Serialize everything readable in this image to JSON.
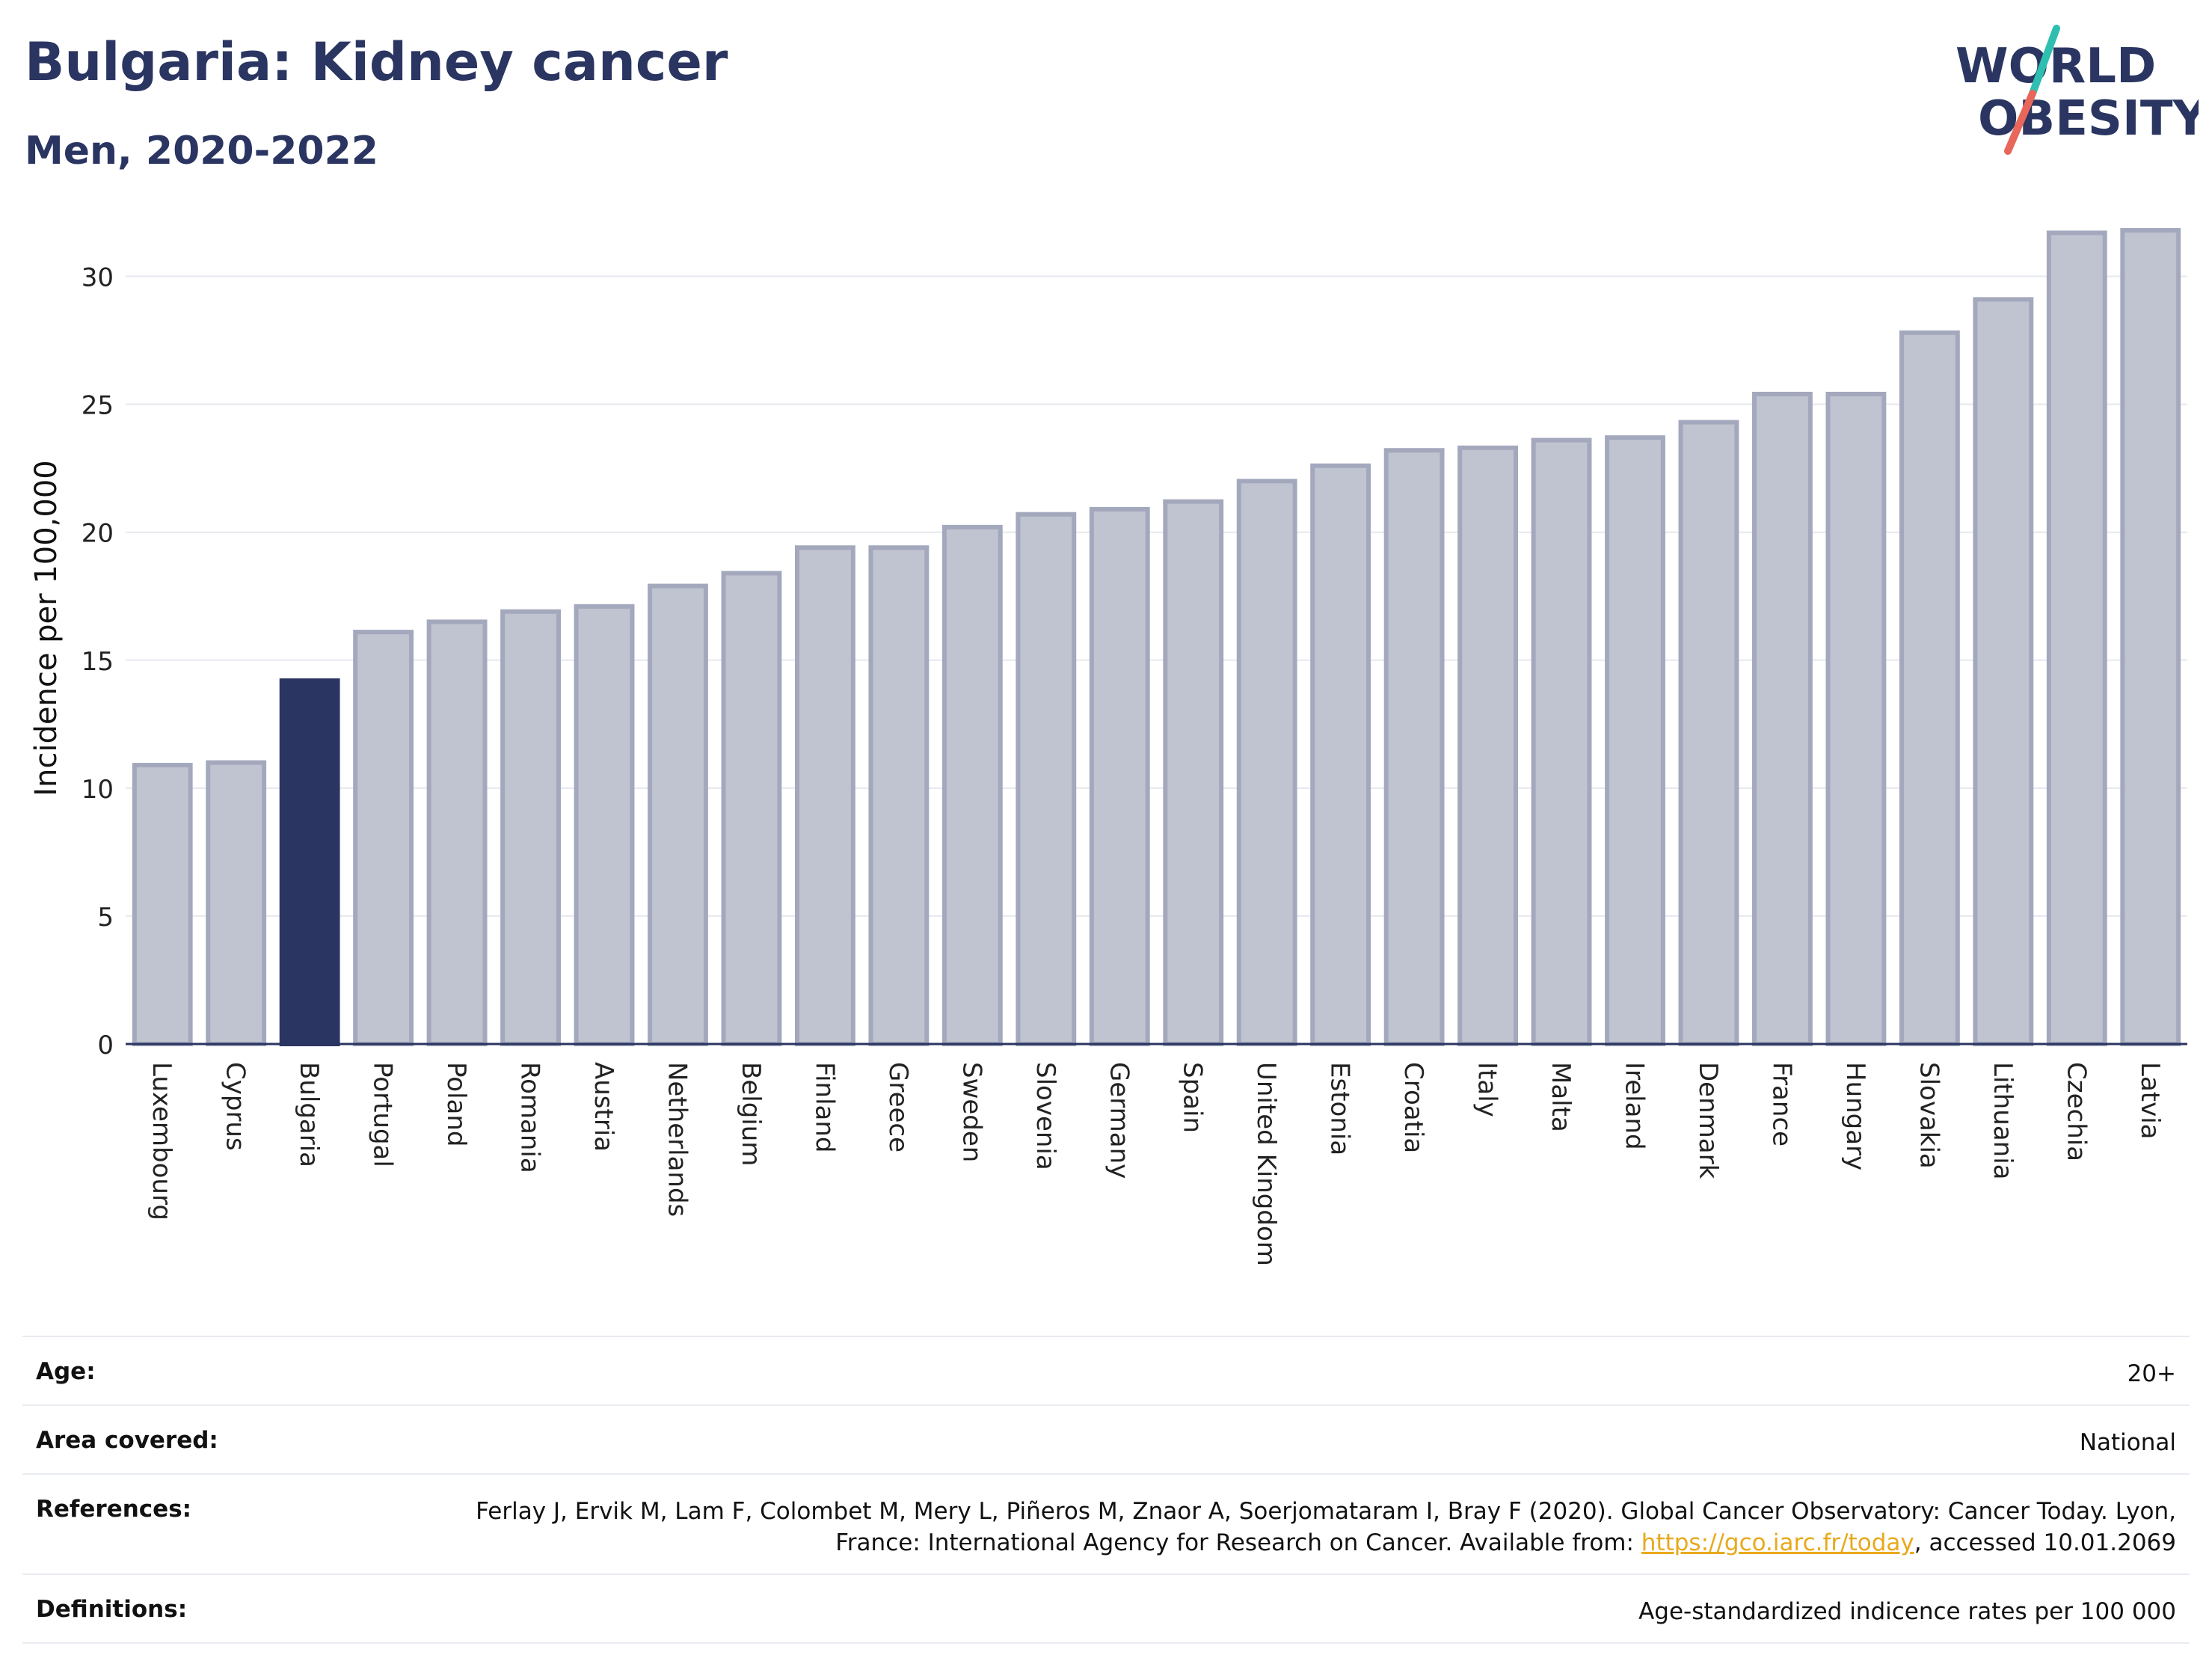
{
  "header": {
    "title": "Bulgaria: Kidney cancer",
    "subtitle": "Men, 2020-2022"
  },
  "logo": {
    "line1": "WORLD",
    "line2": "OBESITY",
    "accent_teal": "#2fbfb0",
    "accent_red": "#e8675a"
  },
  "chart_data": {
    "type": "bar",
    "ylabel": "Incidence per 100,000",
    "ylim": [
      0,
      32.5
    ],
    "yticks": [
      0,
      5,
      10,
      15,
      20,
      25,
      30
    ],
    "grid": true,
    "highlight": "Bulgaria",
    "colors": {
      "bar": "#c0c3d0",
      "bar_border": "#a3a8bd",
      "highlight": "#2a3561"
    },
    "categories": [
      "Luxembourg",
      "Cyprus",
      "Bulgaria",
      "Portugal",
      "Poland",
      "Romania",
      "Austria",
      "Netherlands",
      "Belgium",
      "Finland",
      "Greece",
      "Sweden",
      "Slovenia",
      "Germany",
      "Spain",
      "United Kingdom",
      "Estonia",
      "Croatia",
      "Italy",
      "Malta",
      "Ireland",
      "Denmark",
      "France",
      "Hungary",
      "Slovakia",
      "Lithuania",
      "Czechia",
      "Latvia"
    ],
    "values": [
      10.9,
      11.0,
      14.2,
      16.1,
      16.5,
      16.9,
      17.1,
      17.9,
      18.4,
      19.4,
      19.4,
      20.2,
      20.7,
      20.9,
      21.2,
      22.0,
      22.6,
      23.2,
      23.3,
      23.6,
      23.7,
      24.3,
      25.4,
      25.4,
      27.8,
      29.1,
      31.7,
      31.8
    ]
  },
  "meta": {
    "age_label": "Age:",
    "age_value": "20+",
    "area_label": "Area covered:",
    "area_value": "National",
    "references_label": "References:",
    "references_text_1": "Ferlay J, Ervik M, Lam F, Colombet M, Mery L, Piñeros M, Znaor A, Soerjomataram I, Bray F (2020). Global Cancer Observatory: Cancer Today. Lyon, France: International Agency for Research on Cancer. Available from: ",
    "references_link": "https://gco.iarc.fr/today",
    "references_text_2": ", accessed 10.01.2069",
    "definitions_label": "Definitions:",
    "definitions_value": "Age-standardized indicence rates per 100 000"
  }
}
